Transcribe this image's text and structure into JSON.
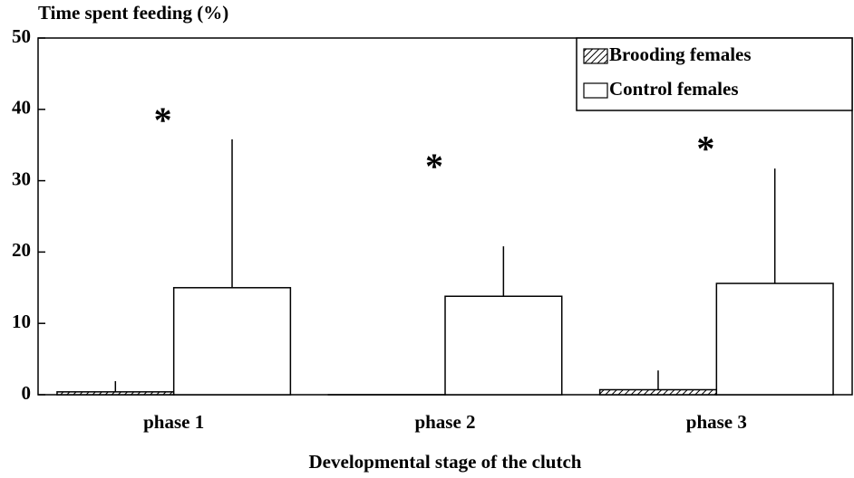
{
  "chart_data": {
    "type": "bar",
    "y_label": "Time spent feeding (%)",
    "x_label": "Developmental stage of the clutch",
    "categories": [
      "phase 1",
      "phase 2",
      "phase 3"
    ],
    "series": [
      {
        "name": "Brooding females",
        "color": "#000000",
        "pattern": "hatch",
        "values": [
          0.4,
          0,
          0.7
        ],
        "errors": [
          1.5,
          0,
          2.7
        ]
      },
      {
        "name": "Control females",
        "color": "#ffffff",
        "values": [
          15,
          13.8,
          15.6
        ],
        "errors": [
          20.8,
          7,
          16.1
        ]
      }
    ],
    "ylim": [
      0,
      50
    ],
    "yticks": [
      0,
      10,
      20,
      30,
      40,
      50
    ],
    "legend": "upper right",
    "annotations": [
      {
        "text": "*",
        "category": 0,
        "y": 39
      },
      {
        "text": "*",
        "category": 1,
        "y": 32.5
      },
      {
        "text": "*",
        "category": 2,
        "y": 35
      }
    ]
  }
}
